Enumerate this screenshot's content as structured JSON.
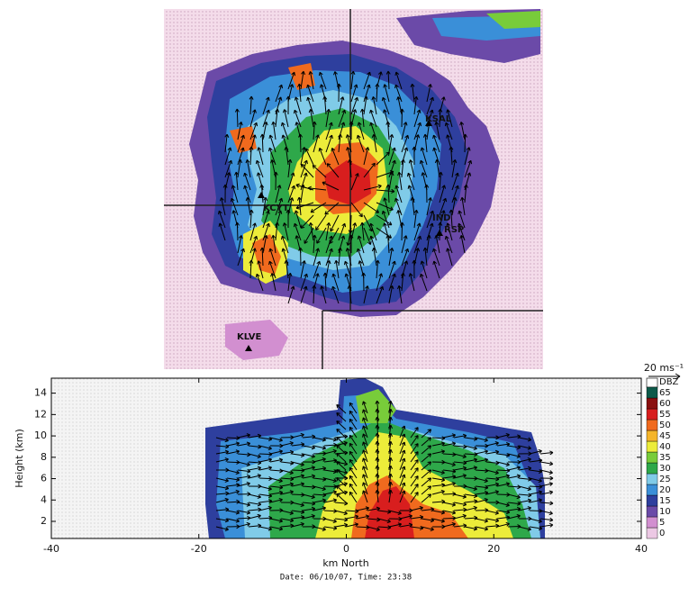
{
  "map": {
    "stations": [
      "KSAL",
      "KCYT",
      "IND",
      "RSP",
      "KLVE"
    ]
  },
  "section": {
    "xlabel": "km North",
    "ylabel": "Height (km)",
    "xlim": [
      -40,
      40
    ],
    "xticks": [
      -40,
      -20,
      0,
      20,
      40
    ],
    "ylim": [
      0.4,
      15.4
    ],
    "yticks": [
      2,
      4,
      6,
      8,
      10,
      12,
      14
    ],
    "colorbar": {
      "title": "DBZ",
      "levels": [
        0,
        5,
        10,
        15,
        20,
        25,
        30,
        35,
        40,
        45,
        50,
        55,
        60,
        65
      ],
      "colors": [
        "#ecc8e4",
        "#d28fd0",
        "#6b4aa8",
        "#2e3f9e",
        "#3a8fd8",
        "#80cbe8",
        "#2ea84a",
        "#78cc3a",
        "#ecec3a",
        "#f5b52a",
        "#f06a1e",
        "#d81e1e",
        "#8a1010",
        "#0e5a4a"
      ]
    },
    "vector_scale": "20 ms⁻¹",
    "caption": "Date: 06/10/07, Time:  23:38"
  }
}
